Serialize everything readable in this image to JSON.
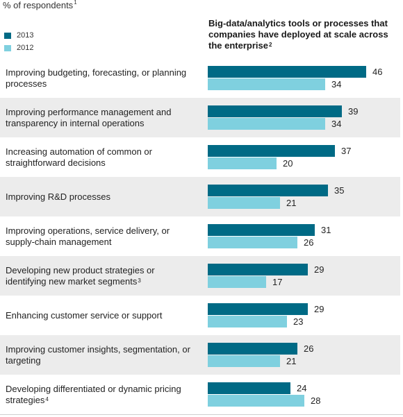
{
  "unit_label": "% of respondents",
  "unit_footnote": "1",
  "panel_title": "Big-data/analytics tools or processes that companies have deployed at scale across the enterprise",
  "panel_title_footnote": "2",
  "colors": {
    "2013": "#006a85",
    "2012": "#7fd0df"
  },
  "chart_data": {
    "type": "bar",
    "orientation": "horizontal",
    "title": "Big-data/analytics tools or processes that companies have deployed at scale across the enterprise",
    "xlim": [
      0,
      50
    ],
    "grid": false,
    "legend_position": "top-left",
    "categories": [
      {
        "label": "Improving budgeting, forecasting, or planning processes",
        "footnote": ""
      },
      {
        "label": "Improving performance management and transparency in internal operations",
        "footnote": ""
      },
      {
        "label": "Increasing automation of common or straightforward decisions",
        "footnote": ""
      },
      {
        "label": "Improving R&D processes",
        "footnote": ""
      },
      {
        "label": "Improving operations, service delivery, or supply-chain management",
        "footnote": ""
      },
      {
        "label": "Developing new product strategies or identifying new market segments",
        "footnote": "3"
      },
      {
        "label": "Enhancing customer service or support",
        "footnote": ""
      },
      {
        "label": "Improving customer insights, segmentation, or targeting",
        "footnote": ""
      },
      {
        "label": "Developing differentiated or dynamic pricing strategies",
        "footnote": "4"
      }
    ],
    "series": [
      {
        "name": "2013",
        "values": [
          46,
          39,
          37,
          35,
          31,
          29,
          29,
          26,
          24
        ]
      },
      {
        "name": "2012",
        "values": [
          34,
          34,
          20,
          21,
          26,
          17,
          23,
          21,
          28
        ]
      }
    ]
  }
}
